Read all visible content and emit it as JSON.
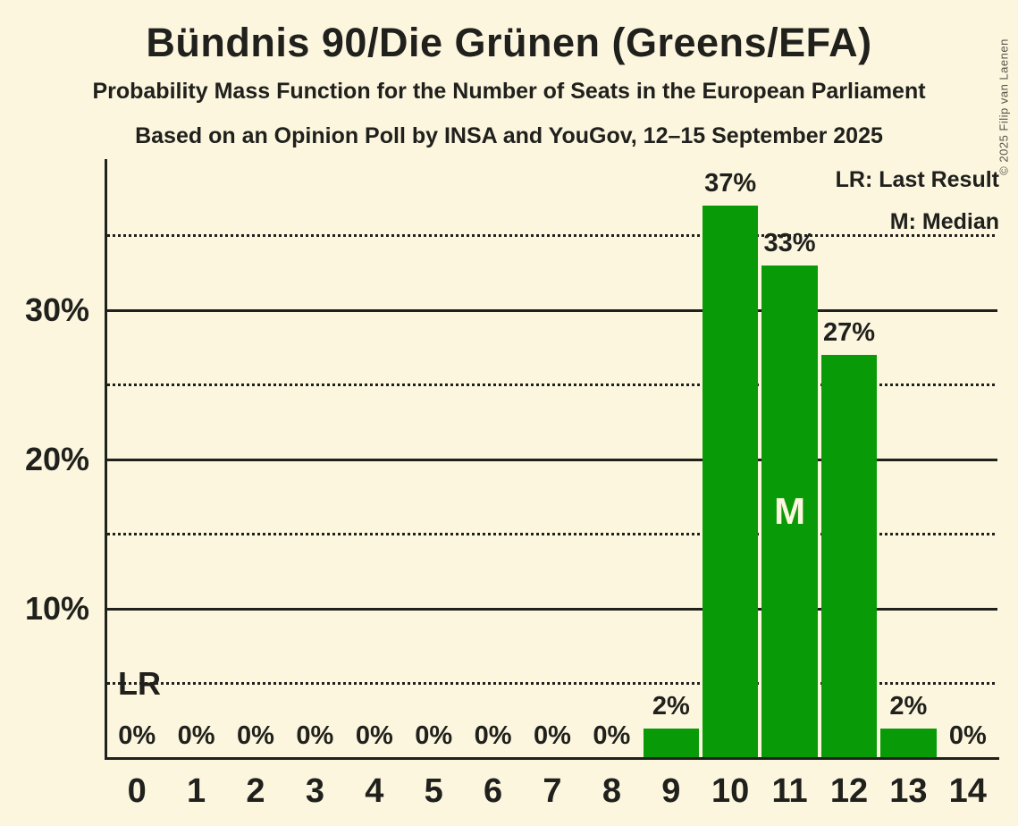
{
  "title": "Bündnis 90/Die Grünen (Greens/EFA)",
  "subtitle": "Probability Mass Function for the Number of Seats in the European Parliament",
  "source_line": "Based on an Opinion Poll by INSA and YouGov, 12–15 September 2025",
  "copyright": "© 2025 Filip van Laenen",
  "legend": {
    "lr": "LR: Last Result",
    "m": "M: Median"
  },
  "annotations": {
    "lr": "LR",
    "median": "M"
  },
  "colors": {
    "background": "#FCF6DF",
    "text": "#20201C",
    "bar": "#089B07",
    "median_text": "#FCF6DF",
    "copyright_text": "#56544A"
  },
  "chart_data": {
    "type": "bar",
    "title": "Probability Mass Function for the Number of Seats in the European Parliament",
    "categories": [
      "0",
      "1",
      "2",
      "3",
      "4",
      "5",
      "6",
      "7",
      "8",
      "9",
      "10",
      "11",
      "12",
      "13",
      "14"
    ],
    "values": [
      0,
      0,
      0,
      0,
      0,
      0,
      0,
      0,
      0,
      2,
      37,
      33,
      27,
      2,
      0
    ],
    "value_labels": [
      "0%",
      "0%",
      "0%",
      "0%",
      "0%",
      "0%",
      "0%",
      "0%",
      "0%",
      "2%",
      "37%",
      "33%",
      "27%",
      "2%",
      "0%"
    ],
    "ylim": [
      0,
      40
    ],
    "yticks": [
      {
        "value": 10,
        "label": "10%"
      },
      {
        "value": 20,
        "label": "20%"
      },
      {
        "value": 30,
        "label": "30%"
      }
    ],
    "gridlines": {
      "solid_every_pct": 10,
      "dotted_every_pct": 5
    },
    "median_category": "11",
    "lr_line_value": 5,
    "legend_position": "top-right",
    "grid": true
  }
}
